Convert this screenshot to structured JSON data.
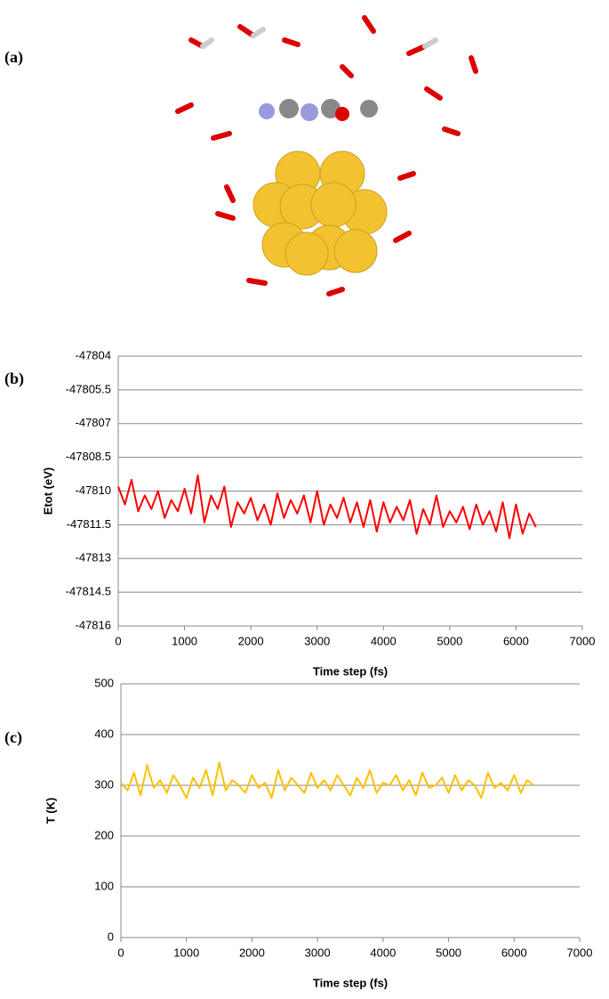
{
  "panel_labels": [
    "(a)",
    "(b)",
    "(c)"
  ],
  "chart_data": [
    {
      "type": "line",
      "y_label": "Etot (eV)",
      "x_label": "Time step (fs)",
      "xlim": [
        0,
        7000
      ],
      "xticks": [
        0,
        1000,
        2000,
        3000,
        4000,
        5000,
        6000,
        7000
      ],
      "ylim": [
        -47816,
        -47804
      ],
      "yticks": [
        -47804,
        -47805.5,
        -47807,
        -47808.5,
        -47810,
        -47811.5,
        -47813,
        -47814.5,
        -47816
      ],
      "grid": true,
      "x": [
        0,
        100,
        200,
        300,
        400,
        500,
        600,
        700,
        800,
        900,
        1000,
        1100,
        1200,
        1300,
        1400,
        1500,
        1600,
        1700,
        1800,
        1900,
        2000,
        2100,
        2200,
        2300,
        2400,
        2500,
        2600,
        2700,
        2800,
        2900,
        3000,
        3100,
        3200,
        3300,
        3400,
        3500,
        3600,
        3700,
        3800,
        3900,
        4000,
        4100,
        4200,
        4300,
        4400,
        4500,
        4600,
        4700,
        4800,
        4900,
        5000,
        5100,
        5200,
        5300,
        5400,
        5500,
        5600,
        5700,
        5800,
        5900,
        6000,
        6100,
        6200,
        6300
      ],
      "series": [
        {
          "color": "#ff0000",
          "values": [
            -47809.8,
            -47810.6,
            -47809.5,
            -47810.9,
            -47810.2,
            -47810.8,
            -47810.0,
            -47811.2,
            -47810.4,
            -47810.9,
            -47809.9,
            -47811.0,
            -47809.3,
            -47811.4,
            -47810.2,
            -47810.8,
            -47809.8,
            -47811.6,
            -47810.5,
            -47811.0,
            -47810.3,
            -47811.3,
            -47810.6,
            -47811.5,
            -47810.1,
            -47811.2,
            -47810.4,
            -47811.0,
            -47810.2,
            -47811.4,
            -47810.0,
            -47811.5,
            -47810.6,
            -47811.2,
            -47810.3,
            -47811.4,
            -47810.5,
            -47811.6,
            -47810.4,
            -47811.8,
            -47810.5,
            -47811.4,
            -47810.7,
            -47811.3,
            -47810.4,
            -47811.9,
            -47810.8,
            -47811.5,
            -47810.2,
            -47811.6,
            -47810.9,
            -47811.4,
            -47810.7,
            -47811.7,
            -47810.6,
            -47811.5,
            -47810.9,
            -47811.8,
            -47810.5,
            -47812.1,
            -47810.6,
            -47811.9,
            -47811.0,
            -47811.6
          ]
        }
      ]
    },
    {
      "type": "line",
      "y_label": "T (K)",
      "x_label": "Time step (fs)",
      "xlim": [
        0,
        7000
      ],
      "xticks": [
        0,
        1000,
        2000,
        3000,
        4000,
        5000,
        6000,
        7000
      ],
      "ylim": [
        0,
        500
      ],
      "yticks": [
        0,
        100,
        200,
        300,
        400,
        500
      ],
      "grid": true,
      "x": [
        0,
        100,
        200,
        300,
        400,
        500,
        600,
        700,
        800,
        900,
        1000,
        1100,
        1200,
        1300,
        1400,
        1500,
        1600,
        1700,
        1800,
        1900,
        2000,
        2100,
        2200,
        2300,
        2400,
        2500,
        2600,
        2700,
        2800,
        2900,
        3000,
        3100,
        3200,
        3300,
        3400,
        3500,
        3600,
        3700,
        3800,
        3900,
        4000,
        4100,
        4200,
        4300,
        4400,
        4500,
        4600,
        4700,
        4800,
        4900,
        5000,
        5100,
        5200,
        5300,
        5400,
        5500,
        5600,
        5700,
        5800,
        5900,
        6000,
        6100,
        6200,
        6300
      ],
      "series": [
        {
          "color": "#ffc000",
          "values": [
            305,
            290,
            325,
            280,
            340,
            295,
            310,
            285,
            320,
            300,
            275,
            315,
            295,
            330,
            280,
            345,
            290,
            310,
            300,
            285,
            320,
            295,
            305,
            275,
            330,
            290,
            315,
            300,
            285,
            325,
            295,
            310,
            290,
            320,
            300,
            280,
            315,
            295,
            330,
            285,
            305,
            300,
            320,
            290,
            310,
            280,
            325,
            295,
            300,
            315,
            285,
            320,
            290,
            310,
            300,
            275,
            325,
            295,
            305,
            290,
            320,
            285,
            310,
            300
          ]
        }
      ]
    }
  ]
}
